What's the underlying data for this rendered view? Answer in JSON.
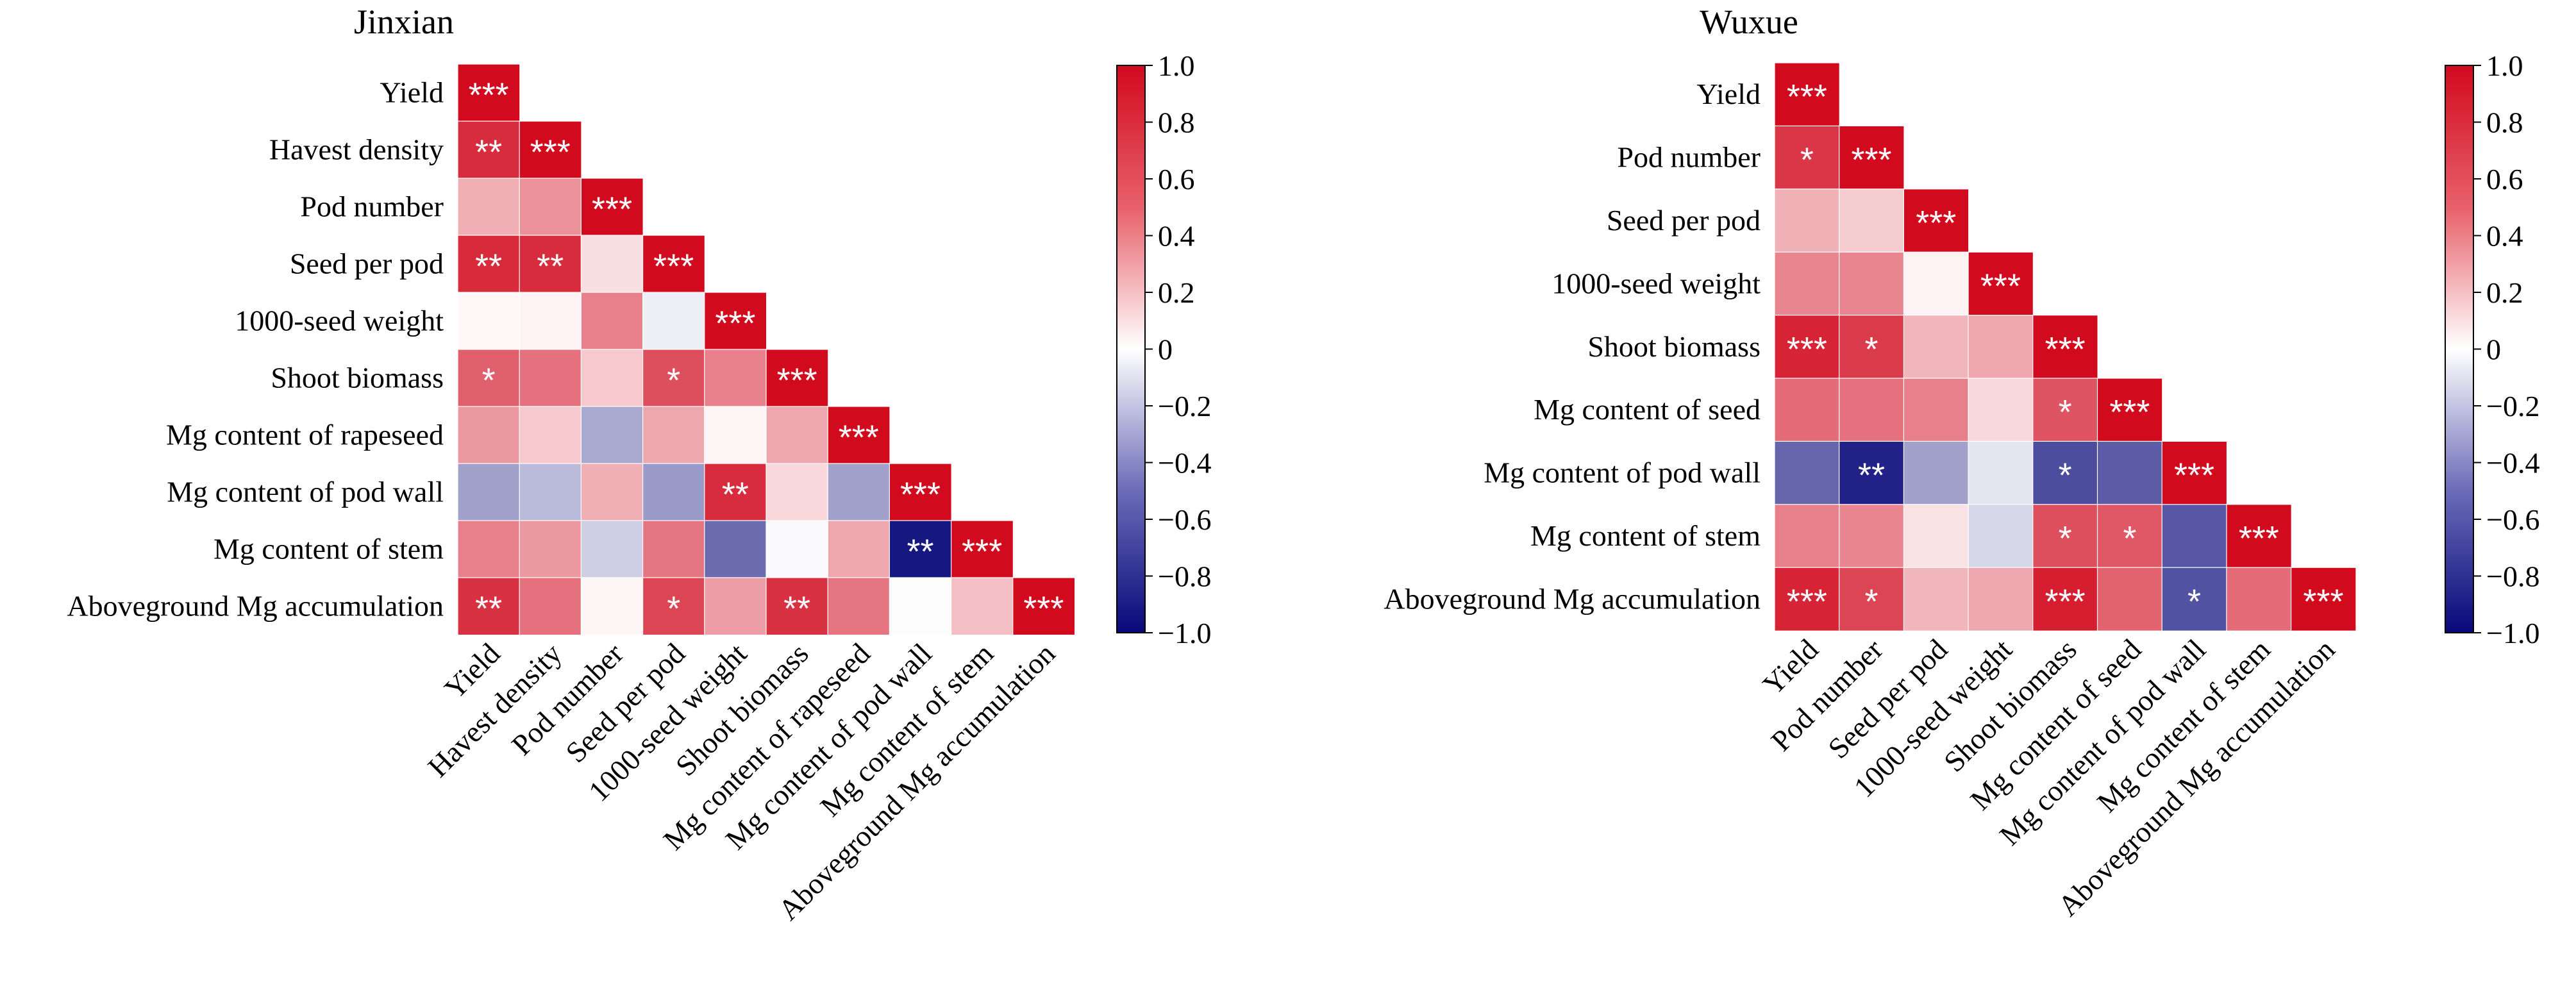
{
  "chart_data": [
    {
      "type": "heatmap",
      "title": "Jinxian",
      "variables": [
        "Yield",
        "Havest density",
        "Pod number",
        "Seed per pod",
        "1000-seed weight",
        "Shoot biomass",
        "Mg content of rapeseed",
        "Mg content of pod wall",
        "Mg content of stem",
        "Aboveground Mg accumulation"
      ],
      "values": [
        [
          1.0
        ],
        [
          0.86,
          1.0
        ],
        [
          0.33,
          0.45,
          1.0
        ],
        [
          0.87,
          0.86,
          0.13,
          1.0
        ],
        [
          0.03,
          0.05,
          0.52,
          -0.07,
          1.0
        ],
        [
          0.65,
          0.58,
          0.22,
          0.72,
          0.52,
          1.0
        ],
        [
          0.42,
          0.22,
          -0.35,
          0.36,
          0.04,
          0.36,
          1.0
        ],
        [
          -0.38,
          -0.28,
          0.33,
          -0.41,
          0.86,
          0.16,
          -0.38,
          1.0
        ],
        [
          0.52,
          0.42,
          -0.2,
          0.56,
          -0.6,
          -0.02,
          0.36,
          -0.94,
          1.0
        ],
        [
          0.84,
          0.58,
          0.04,
          0.76,
          0.4,
          0.84,
          0.56,
          -0.01,
          0.26,
          1.0
        ]
      ],
      "significance": [
        [
          "***"
        ],
        [
          "**",
          "***"
        ],
        [
          "",
          "",
          "***"
        ],
        [
          "**",
          "**",
          "",
          "***"
        ],
        [
          "",
          "",
          "",
          "",
          "***"
        ],
        [
          "*",
          "",
          "",
          "*",
          "",
          "***"
        ],
        [
          "",
          "",
          "",
          "",
          "",
          "",
          "***"
        ],
        [
          "",
          "",
          "",
          "",
          "**",
          "",
          "",
          "***"
        ],
        [
          "",
          "",
          "",
          "",
          "",
          "",
          "",
          "**",
          "***"
        ],
        [
          "**",
          "",
          "",
          "*",
          "",
          "**",
          "",
          "",
          "",
          "***"
        ]
      ],
      "colorbar": {
        "range": [
          -1.0,
          1.0
        ],
        "ticks": [
          "1.0",
          "0.8",
          "0.6",
          "0.4",
          "0.2",
          "0",
          "−0.2",
          "−0.4",
          "−0.6",
          "−0.8",
          "−1.0"
        ]
      },
      "colors": {
        "negative": "#08087a",
        "zero": "#ffffff",
        "positive": "#d10a1e"
      }
    },
    {
      "type": "heatmap",
      "title": "Wuxue",
      "variables": [
        "Yield",
        "Pod number",
        "Seed per pod",
        "1000-seed weight",
        "Shoot biomass",
        "Mg content of seed",
        "Mg content of pod wall",
        "Mg content of stem",
        "Aboveground Mg accumulation"
      ],
      "values": [
        [
          1.0
        ],
        [
          0.82,
          1.0
        ],
        [
          0.32,
          0.2,
          1.0
        ],
        [
          0.5,
          0.5,
          0.05,
          1.0
        ],
        [
          0.9,
          0.8,
          0.3,
          0.36,
          1.0
        ],
        [
          0.6,
          0.58,
          0.52,
          0.16,
          0.7,
          1.0
        ],
        [
          -0.62,
          -0.9,
          -0.38,
          -0.1,
          -0.72,
          -0.66,
          1.0
        ],
        [
          0.52,
          0.5,
          0.12,
          -0.16,
          0.72,
          0.68,
          -0.68,
          1.0
        ],
        [
          0.9,
          0.76,
          0.3,
          0.36,
          0.92,
          0.64,
          -0.7,
          0.6,
          1.0
        ]
      ],
      "significance": [
        [
          "***"
        ],
        [
          "*",
          "***"
        ],
        [
          "",
          "",
          "***"
        ],
        [
          "",
          "",
          "",
          "***"
        ],
        [
          "***",
          "*",
          "",
          "",
          "***"
        ],
        [
          "",
          "",
          "",
          "",
          "*",
          "***"
        ],
        [
          "",
          "**",
          "",
          "",
          "*",
          "",
          "***"
        ],
        [
          "",
          "",
          "",
          "",
          "*",
          "*",
          "",
          "***"
        ],
        [
          "***",
          "*",
          "",
          "",
          "***",
          "",
          "*",
          "",
          "***"
        ]
      ],
      "colorbar": {
        "range": [
          -1.0,
          1.0
        ],
        "ticks": [
          "1.0",
          "0.8",
          "0.6",
          "0.4",
          "0.2",
          "0",
          "−0.2",
          "−0.4",
          "−0.6",
          "−0.8",
          "−1.0"
        ]
      },
      "colors": {
        "negative": "#08087a",
        "zero": "#ffffff",
        "positive": "#d10a1e"
      }
    }
  ]
}
